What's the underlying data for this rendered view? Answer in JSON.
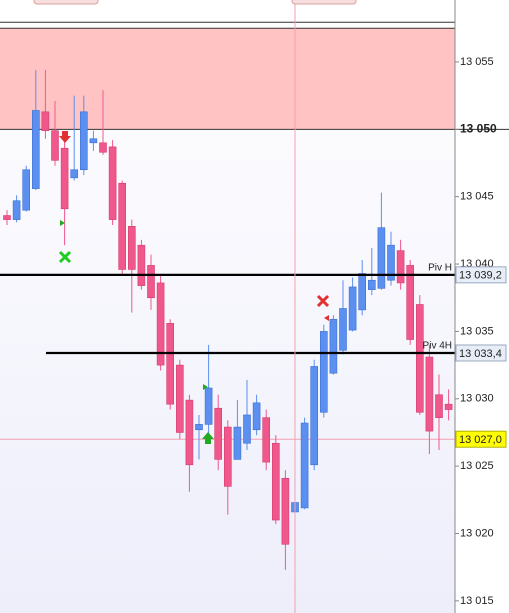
{
  "chart_data": {
    "type": "candlestick",
    "ylim": [
      13014.1,
      13059.6
    ],
    "yticks": [
      {
        "value": 13015,
        "label": "13 015"
      },
      {
        "value": 13020,
        "label": "13 020"
      },
      {
        "value": 13025,
        "label": "13 025"
      },
      {
        "value": 13030,
        "label": "13 030"
      },
      {
        "value": 13035,
        "label": "13 035"
      },
      {
        "value": 13040,
        "label": "13 040"
      },
      {
        "value": 13045,
        "label": "13 045"
      },
      {
        "value": 13050,
        "label": "13 050"
      },
      {
        "value": 13055,
        "label": "13 055"
      }
    ],
    "bold_tick": 13050,
    "up_color": "#5b8ff0",
    "down_color": "#f0588c",
    "open": [
      13043.6,
      13043.3,
      13044.0,
      13045.6,
      13051.3,
      13049.9,
      13048.6,
      13046.4,
      13047.0,
      13049.0,
      13049.0,
      13048.7,
      13046.0,
      13042.8,
      13041.4,
      13039.9,
      13038.6,
      13035.6,
      13032.5,
      13029.9,
      13027.7,
      13028.1,
      13029.3,
      13027.9,
      13025.5,
      13026.7,
      13027.7,
      13028.6,
      13026.7,
      13024.1,
      13021.6,
      13021.9,
      13025.1,
      13029.0,
      13031.9,
      13033.6,
      13035.1,
      13036.6,
      13038.1,
      13038.2,
      13038.8,
      13041.0,
      13039.9,
      13037.0,
      13033.1,
      13030.3,
      13029.6
    ],
    "high": [
      13044.0,
      13045.1,
      13047.3,
      13054.4,
      13054.4,
      13052.1,
      13049.2,
      13052.5,
      13052.5,
      13049.9,
      13052.9,
      13049.2,
      13046.2,
      13043.3,
      13041.8,
      13040.7,
      13039.2,
      13035.9,
      13032.9,
      13030.3,
      13028.8,
      13034.0,
      13030.3,
      13028.4,
      13029.9,
      13031.4,
      13030.3,
      13029.2,
      13027.3,
      13024.7,
      13022.7,
      13028.6,
      13032.9,
      13035.5,
      13036.2,
      13038.8,
      13039.0,
      13040.3,
      13041.2,
      13045.3,
      13042.4,
      13041.8,
      13040.3,
      13037.7,
      13034.0,
      13031.8,
      13030.7
    ],
    "low": [
      13042.9,
      13043.1,
      13043.9,
      13045.5,
      13049.3,
      13047.3,
      13041.4,
      13046.2,
      13046.6,
      13048.4,
      13048.1,
      13042.9,
      13039.2,
      13036.4,
      13038.1,
      13036.6,
      13032.1,
      13029.2,
      13027.0,
      13023.1,
      13025.5,
      13027.0,
      13024.7,
      13021.4,
      13025.5,
      13026.2,
      13027.3,
      13024.7,
      13020.7,
      13017.3,
      13020.7,
      13021.8,
      13024.7,
      13028.6,
      13031.8,
      13033.3,
      13035.0,
      13036.2,
      13037.7,
      13038.1,
      13038.4,
      13038.1,
      13034.0,
      13028.8,
      13025.9,
      13026.2,
      13028.4
    ],
    "close": [
      13043.3,
      13044.7,
      13047.0,
      13051.4,
      13049.9,
      13047.7,
      13044.1,
      13047.0,
      13051.3,
      13049.3,
      13048.3,
      13043.3,
      13039.6,
      13039.6,
      13038.4,
      13037.5,
      13032.5,
      13029.6,
      13027.5,
      13025.1,
      13028.1,
      13030.8,
      13025.5,
      13023.5,
      13027.9,
      13028.8,
      13029.7,
      13025.3,
      13021.0,
      13019.2,
      13022.3,
      13028.2,
      13032.4,
      13035.0,
      13035.9,
      13036.7,
      13038.3,
      13039.3,
      13038.8,
      13042.7,
      13041.4,
      13038.6,
      13034.4,
      13029.0,
      13027.6,
      13028.6,
      13029.2
    ],
    "zone": {
      "low": 13050,
      "high": 13057.5,
      "color": "#ffb8b8"
    },
    "levels": [
      {
        "name": "Piv H",
        "value": 13039.2,
        "label": "13 039,2"
      },
      {
        "name": "Piv 4H",
        "value": 13033.4,
        "label": "13 033,4"
      }
    ],
    "last_price": {
      "value": 13027.0,
      "label": "13 027,0",
      "color": "#ffff00"
    }
  }
}
